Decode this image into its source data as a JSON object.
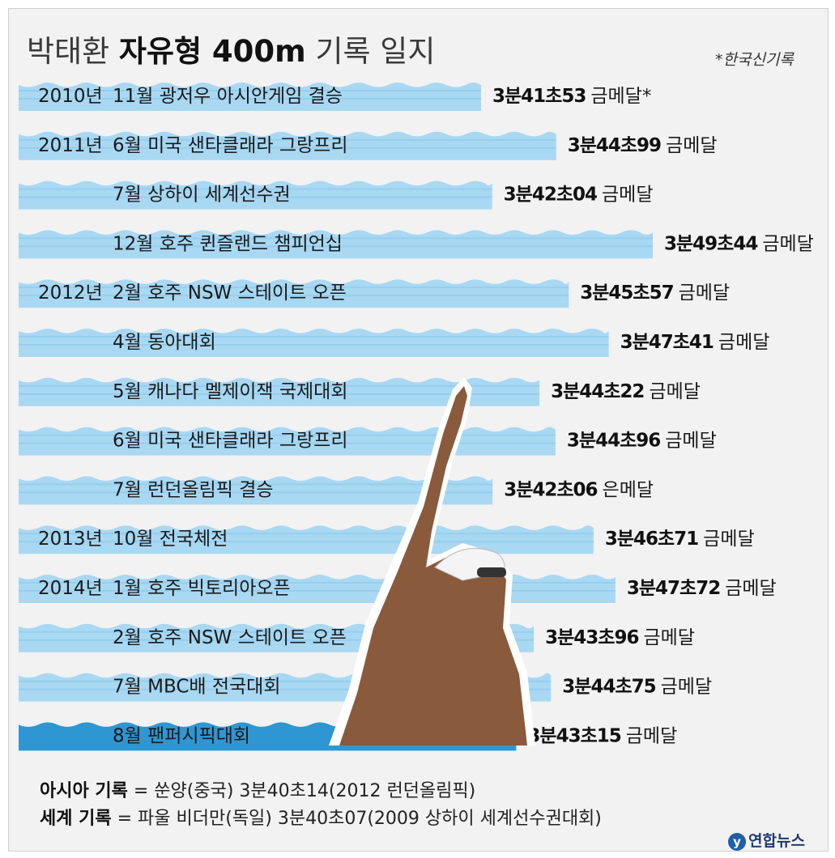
{
  "title": {
    "pre": "박태환",
    "bold": "자유형 400m",
    "post": "기록 일지"
  },
  "footnote": "*한국신기록",
  "chart_data": {
    "type": "bar",
    "orientation": "horizontal",
    "value_unit": "seconds",
    "rows": [
      {
        "year": "2010년",
        "event": "11월 광저우 아시안게임 결승",
        "seconds": 221.53,
        "time_label": "3분41초53",
        "medal": "금메달*",
        "highlight": false
      },
      {
        "year": "2011년",
        "event": "6월 미국 샌타클래라 그랑프리",
        "seconds": 224.99,
        "time_label": "3분44초99",
        "medal": "금메달",
        "highlight": false
      },
      {
        "year": "",
        "event": "7월 상하이 세계선수권",
        "seconds": 222.04,
        "time_label": "3분42초04",
        "medal": "금메달",
        "highlight": false
      },
      {
        "year": "",
        "event": "12월 호주 퀸즐랜드 챔피언십",
        "seconds": 229.44,
        "time_label": "3분49초44",
        "medal": "금메달",
        "highlight": false
      },
      {
        "year": "2012년",
        "event": "2월 호주 NSW 스테이트 오픈",
        "seconds": 225.57,
        "time_label": "3분45초57",
        "medal": "금메달",
        "highlight": false
      },
      {
        "year": "",
        "event": "4월 동아대회",
        "seconds": 227.41,
        "time_label": "3분47초41",
        "medal": "금메달",
        "highlight": false
      },
      {
        "year": "",
        "event": "5월 캐나다 멜제이잭 국제대회",
        "seconds": 224.22,
        "time_label": "3분44초22",
        "medal": "금메달",
        "highlight": false
      },
      {
        "year": "",
        "event": "6월 미국 샌타클래라 그랑프리",
        "seconds": 224.96,
        "time_label": "3분44초96",
        "medal": "금메달",
        "highlight": false
      },
      {
        "year": "",
        "event": "7월 런던올림픽 결승",
        "seconds": 222.06,
        "time_label": "3분42초06",
        "medal": "은메달",
        "highlight": false
      },
      {
        "year": "2013년",
        "event": "10월 전국체전",
        "seconds": 226.71,
        "time_label": "3분46초71",
        "medal": "금메달",
        "highlight": false
      },
      {
        "year": "2014년",
        "event": "1월 호주 빅토리아오픈",
        "seconds": 227.72,
        "time_label": "3분47초72",
        "medal": "금메달",
        "highlight": false
      },
      {
        "year": "",
        "event": "2월 호주 NSW 스테이트 오픈",
        "seconds": 223.96,
        "time_label": "3분43초96",
        "medal": "금메달",
        "highlight": false
      },
      {
        "year": "",
        "event": "7월 MBC배 전국대회",
        "seconds": 224.75,
        "time_label": "3분44초75",
        "medal": "금메달",
        "highlight": false
      },
      {
        "year": "",
        "event": "8월 팬퍼시픽대회",
        "seconds": 223.15,
        "time_label": "3분43초15",
        "medal": "금메달",
        "highlight": true
      }
    ]
  },
  "notes": {
    "asia_label": "아시아 기록",
    "asia_text": " = 쑨양(중국) 3분40초14(2012 런던올림픽)",
    "world_label": "세계 기록",
    "world_text": " = 파울 비더만(독일) 3분40초07(2009 상하이 세계선수권대회)"
  },
  "logo": {
    "mark": "y",
    "text": "연합뉴스"
  },
  "colors": {
    "bar": "#a9d8f2",
    "bar_wave": "#7cc3ea",
    "bar_highlight": "#2e97d3",
    "background": "#f2f2f2"
  }
}
